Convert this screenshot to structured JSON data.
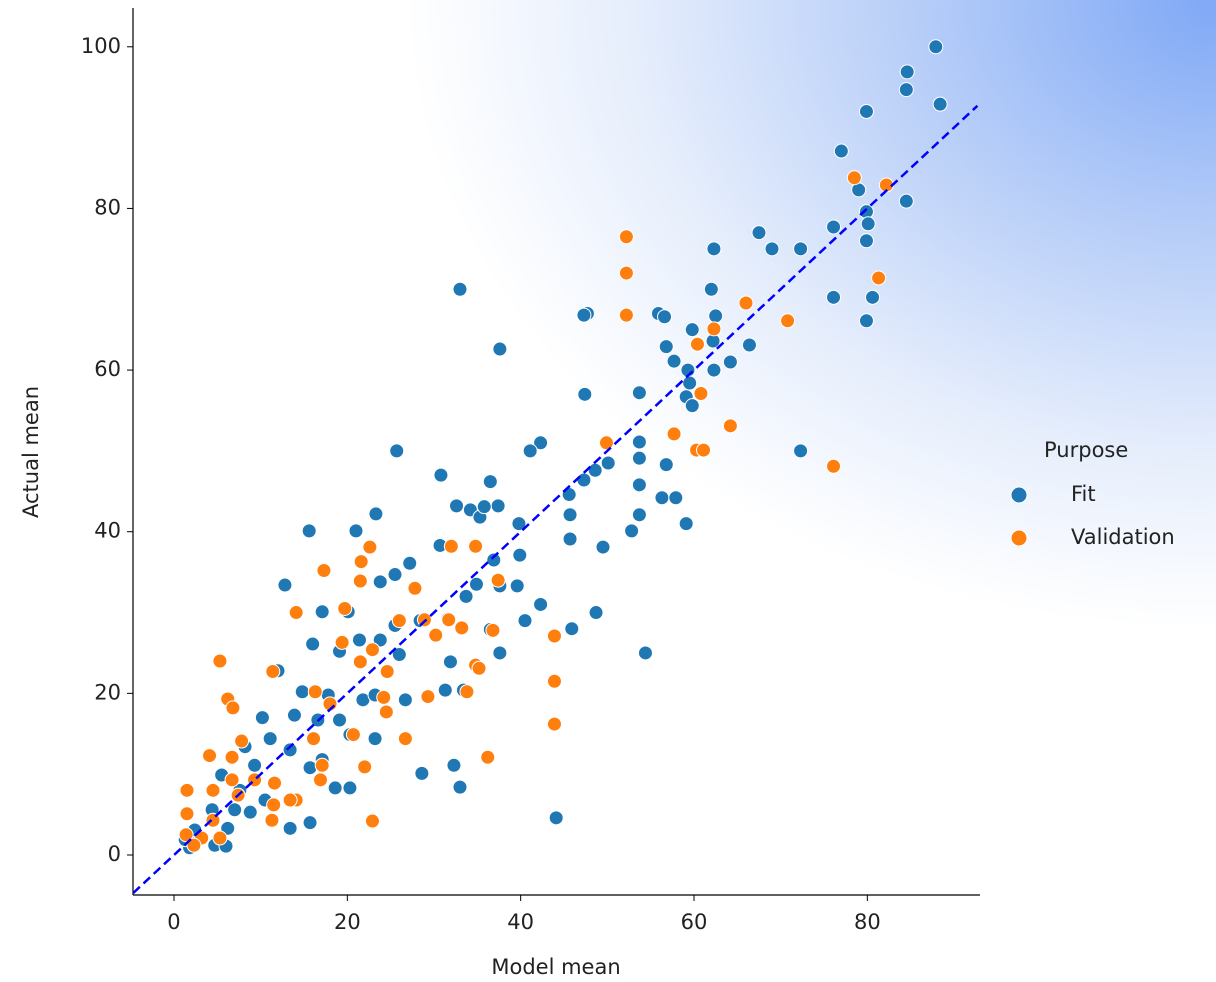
{
  "chart_data": {
    "type": "scatter",
    "x_label": "Model mean",
    "y_label": "Actual mean",
    "xlim": [
      -4.73,
      93.0
    ],
    "ylim": [
      -4.95,
      104.8
    ],
    "xticks": [
      0,
      20,
      40,
      60,
      80
    ],
    "yticks": [
      0,
      20,
      40,
      60,
      80,
      100
    ],
    "legend_title": "Purpose",
    "legend_position": "right",
    "reference_line": {
      "x": [
        -4.7,
        92.7
      ],
      "y": [
        -4.7,
        92.7
      ],
      "color": "#0000ff"
    },
    "series": [
      {
        "name": "Fit",
        "color": "#1f77b4",
        "x": [
          87.9,
          84.6,
          84.5,
          88.4,
          79.9,
          77,
          79,
          84.5,
          79.9,
          80.1,
          79.9,
          76.1,
          67.5,
          69,
          72.3,
          62.3,
          62,
          76.1,
          80.6,
          79.9,
          47.7,
          47.3,
          55.9,
          56.6,
          59.8,
          62.5,
          62.2,
          56.8,
          57.7,
          59.3,
          62.3,
          64.2,
          66.4,
          33,
          37.6,
          47.4,
          53.7,
          59.5,
          59.1,
          59.8,
          72.3,
          53.7,
          53.7,
          56.8,
          50.1,
          48.6,
          47.3,
          45.6,
          53.7,
          56.3,
          57.9,
          53.7,
          52.8,
          59.1,
          45.7,
          45.7,
          49.5,
          42.3,
          41.1,
          25.7,
          30.8,
          36.5,
          32.6,
          34.2,
          35.3,
          37.4,
          35.8,
          39.8,
          39.9,
          36.9,
          39.6,
          37.6,
          34.9,
          33.7,
          42.3,
          48.7,
          40.5,
          36.5,
          45.9,
          54.4,
          37.6,
          44.1,
          33,
          32.3,
          28.6,
          15.6,
          21,
          23.3,
          12.8,
          27.2,
          25.5,
          23.8,
          17.1,
          20.1,
          30.7,
          31.6,
          16,
          19.1,
          21.4,
          23.8,
          26,
          31.9,
          33.4,
          31.3,
          14.8,
          17.8,
          21.8,
          26.7,
          12,
          13.9,
          16.6,
          19.1,
          10.2,
          24.5,
          23.2,
          20.3,
          11.1,
          8.2,
          13.4,
          17.1,
          15.7,
          9.3,
          5.5,
          7.6,
          18.6,
          20.3,
          15.7,
          13.4,
          10.5,
          8.8,
          6.2,
          3,
          1.8,
          1.3,
          4.7,
          6,
          7,
          4.4,
          2.4,
          23.2,
          28.4,
          25.5
        ],
        "values": [
          100,
          96.9,
          94.7,
          92.9,
          92,
          87.1,
          82.3,
          80.9,
          79.6,
          78.1,
          76,
          77.7,
          77,
          75,
          75,
          75,
          70,
          69,
          69,
          66.1,
          67,
          66.8,
          67,
          66.6,
          65,
          66.7,
          63.6,
          62.9,
          61.1,
          60,
          60,
          61,
          63.1,
          70,
          62.6,
          57,
          57.2,
          58.4,
          56.7,
          55.6,
          50,
          51.1,
          49.1,
          48.3,
          48.5,
          47.6,
          46.4,
          44.6,
          45.8,
          44.2,
          44.2,
          42.1,
          40.1,
          41,
          42.1,
          39.1,
          38.1,
          51,
          50,
          50,
          47,
          46.2,
          43.2,
          42.7,
          41.8,
          43.2,
          43.1,
          41,
          37.1,
          36.5,
          33.3,
          33.3,
          33.5,
          32,
          31,
          30,
          29,
          27.9,
          28,
          25,
          25,
          4.6,
          8.4,
          11.1,
          10.1,
          40.1,
          40.1,
          42.2,
          33.4,
          36.1,
          34.7,
          33.8,
          30.1,
          30.1,
          38.3,
          29.2,
          26.1,
          25.2,
          26.6,
          26.6,
          24.8,
          23.9,
          20.4,
          20.4,
          20.2,
          19.8,
          19.2,
          19.2,
          22.8,
          17.3,
          16.7,
          16.7,
          17,
          17.8,
          14.4,
          14.9,
          14.4,
          13.4,
          13,
          11.8,
          10.8,
          11.1,
          9.9,
          8,
          8.3,
          8.3,
          4,
          3.3,
          6.8,
          5.3,
          3.3,
          2.1,
          0.9,
          1.9,
          1.2,
          1.1,
          5.6,
          5.6,
          3.1,
          19.8,
          29,
          28.4
        ]
      },
      {
        "name": "Validation",
        "color": "#ff7f0e",
        "x": [
          52.2,
          52.2,
          52.2,
          78.5,
          82.2,
          81.3,
          66,
          70.8,
          62.3,
          60.4,
          60.8,
          57.7,
          64.2,
          60.3,
          61.1,
          49.9,
          76.1,
          34.8,
          32,
          22.6,
          37.4,
          43.9,
          43.9,
          43.9,
          36.2,
          22.9,
          31.7,
          33.2,
          36.8,
          34.8,
          33.8,
          35.2,
          30.2,
          28.9,
          27.8,
          26,
          24.6,
          24.2,
          26.7,
          29.3,
          24.5,
          21.6,
          17.3,
          14.1,
          19.7,
          21.5,
          19.4,
          21.5,
          22.9,
          16.3,
          18,
          20.7,
          16.1,
          17.1,
          16.9,
          11.4,
          5.3,
          6.2,
          6.8,
          7.8,
          4.1,
          6.7,
          11.6,
          11.5,
          11.3,
          14.1,
          22,
          1.5,
          4.5,
          1.5,
          4.5,
          5.3,
          3.2,
          1.4,
          2.3,
          6.7,
          9.3,
          7.4,
          13.4
        ],
        "values": [
          76.5,
          72,
          66.8,
          83.8,
          82.9,
          71.4,
          68.3,
          66.1,
          65.1,
          63.2,
          57.1,
          52.1,
          53.1,
          50.1,
          50.1,
          51,
          48.1,
          38.2,
          38.2,
          38.1,
          34,
          27.1,
          21.5,
          16.2,
          12.1,
          4.2,
          29.1,
          28.1,
          27.8,
          23.5,
          20.2,
          23.1,
          27.2,
          29.1,
          33,
          29,
          22.7,
          19.5,
          14.4,
          19.6,
          17.7,
          36.3,
          35.2,
          30,
          30.5,
          33.9,
          26.3,
          23.9,
          25.4,
          20.2,
          18.7,
          14.9,
          14.4,
          11.1,
          9.3,
          22.7,
          24,
          19.3,
          18.2,
          14.1,
          12.3,
          12.1,
          8.9,
          6.2,
          4.3,
          6.8,
          10.9,
          8,
          8,
          5.1,
          4.3,
          2.1,
          2.1,
          2.5,
          1.2,
          9.3,
          9.3,
          7.4,
          6.8
        ]
      }
    ]
  }
}
